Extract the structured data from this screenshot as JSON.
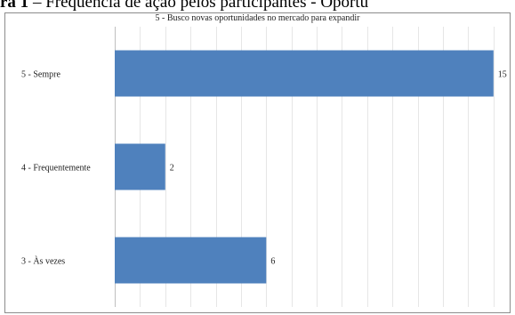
{
  "caption": {
    "prefix": "ra 1",
    "text": " – Frequência de ação pelos participantes - Oportu"
  },
  "chart_data": {
    "type": "bar",
    "orientation": "horizontal",
    "title": "5 - Busco novas oportunidades no mercado para expandir",
    "categories": [
      "5 - Sempre",
      "4 - Frequentemente",
      "3 - Às vezes"
    ],
    "values": [
      15,
      2,
      6
    ],
    "data_labels": [
      "15",
      "2",
      "6"
    ],
    "xlim": [
      0,
      15.5
    ],
    "grid": true,
    "legend": "none",
    "bar_color": "#4f81bd",
    "grid_color": "#e6e6e6"
  }
}
